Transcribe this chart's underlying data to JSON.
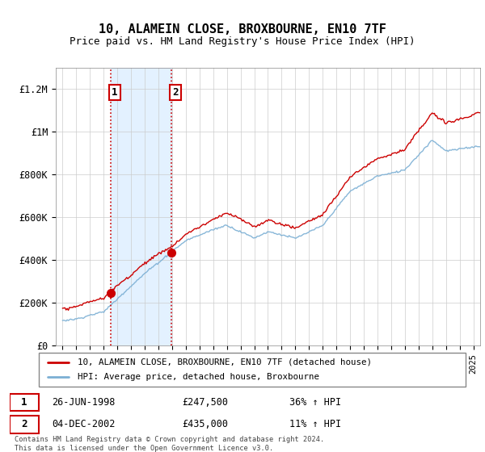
{
  "title": "10, ALAMEIN CLOSE, BROXBOURNE, EN10 7TF",
  "subtitle": "Price paid vs. HM Land Registry's House Price Index (HPI)",
  "legend_line1": "10, ALAMEIN CLOSE, BROXBOURNE, EN10 7TF (detached house)",
  "legend_line2": "HPI: Average price, detached house, Broxbourne",
  "sale1_date": "26-JUN-1998",
  "sale1_price": 247500,
  "sale1_hpi": "36% ↑ HPI",
  "sale2_date": "04-DEC-2002",
  "sale2_price": 435000,
  "sale2_hpi": "11% ↑ HPI",
  "footnote": "Contains HM Land Registry data © Crown copyright and database right 2024.\nThis data is licensed under the Open Government Licence v3.0.",
  "red_color": "#cc0000",
  "blue_color": "#7bafd4",
  "shade_color": "#ddeeff",
  "ylim": [
    0,
    1300000
  ],
  "yticks": [
    0,
    200000,
    400000,
    600000,
    800000,
    1000000,
    1200000
  ],
  "ytick_labels": [
    "£0",
    "£200K",
    "£400K",
    "£600K",
    "£800K",
    "£1M",
    "£1.2M"
  ],
  "sale1_x": 1998.49,
  "sale2_x": 2002.92,
  "xmin": 1994.5,
  "xmax": 2025.5
}
